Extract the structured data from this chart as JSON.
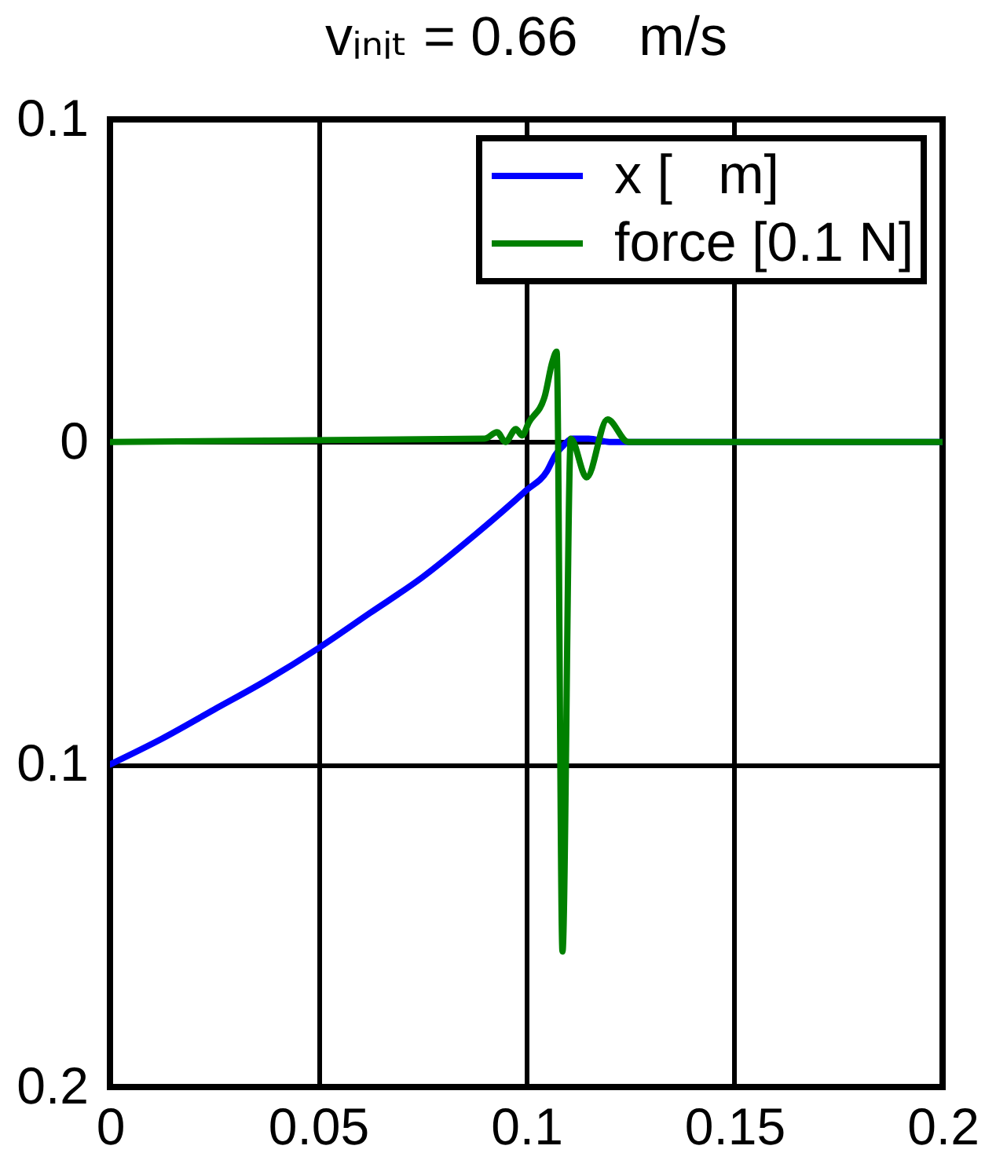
{
  "chart_data": {
    "type": "line",
    "title": "vᵢₙᵢₜ = 0.66    m/s",
    "series": [
      {
        "name": "x [   m]",
        "color": "#0000ff",
        "x": [
          0,
          0.0125,
          0.025,
          0.0375,
          0.05,
          0.0625,
          0.075,
          0.0875,
          0.1,
          0.105,
          0.107,
          0.109,
          0.111,
          0.115,
          0.12,
          0.2
        ],
        "values": [
          -0.1,
          -0.092,
          -0.083,
          -0.074,
          -0.064,
          -0.053,
          -0.042,
          -0.029,
          -0.015,
          -0.009,
          -0.004,
          -0.001,
          0.001,
          0.001,
          0,
          0
        ]
      },
      {
        "name": "force [0.1 N]",
        "color": "#008000",
        "x": [
          0,
          0.09,
          0.093,
          0.095,
          0.0975,
          0.099,
          0.1006,
          0.1044,
          0.1063,
          0.1073,
          0.1087,
          0.1107,
          0.1145,
          0.1195,
          0.1245,
          0.13,
          0.2
        ],
        "values": [
          0,
          0.001,
          0.003,
          0,
          0.004,
          0.002,
          0.006,
          0.014,
          0.025,
          0.028,
          -0.158,
          0.001,
          -0.011,
          0.007,
          0,
          0,
          0
        ]
      }
    ],
    "xlim": [
      0,
      0.2
    ],
    "xticks": [
      0,
      0.05,
      0.1,
      0.15,
      0.2
    ],
    "ylim": [
      -0.2,
      0.1
    ],
    "yticks": [
      0.1,
      0,
      {
        "value": -0.1,
        "label": "0.1"
      },
      {
        "value": -0.2,
        "label": "0.2"
      }
    ],
    "grid": true,
    "legend": "top right",
    "line_style": "solid"
  }
}
